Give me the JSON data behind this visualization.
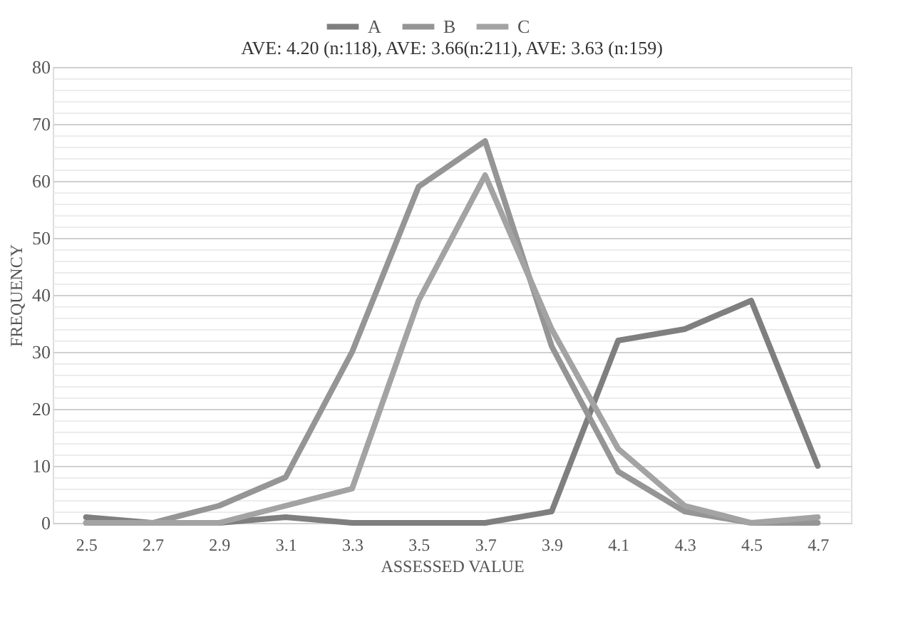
{
  "chart_data": {
    "type": "line",
    "subtitle": "AVE:  4.20 (n:118), AVE: 3.66(n:211), AVE: 3.63 (n:159)",
    "xlabel": "ASSESSED VALUE",
    "ylabel": "FREQUENCY",
    "categories": [
      "2.5",
      "2.7",
      "2.9",
      "3.1",
      "3.3",
      "3.5",
      "3.7",
      "3.9",
      "4.1",
      "4.3",
      "4.5",
      "4.7"
    ],
    "series": [
      {
        "name": "A",
        "color": "#7f7f7f",
        "values": [
          1,
          0,
          0,
          1,
          0,
          0,
          0,
          2,
          32,
          34,
          39,
          10
        ]
      },
      {
        "name": "B",
        "color": "#959595",
        "values": [
          0,
          0,
          3,
          8,
          30,
          59,
          67,
          31,
          9,
          2,
          0,
          0
        ]
      },
      {
        "name": "C",
        "color": "#a3a3a3",
        "values": [
          0,
          0,
          0,
          3,
          6,
          39,
          61,
          34,
          13,
          3,
          0,
          1
        ]
      }
    ],
    "ylim": [
      0,
      80
    ],
    "yticks": [
      0,
      {
        "value": 2,
        "label": null
      },
      {
        "value": 4,
        "label": null
      },
      {
        "value": 6,
        "label": null
      },
      {
        "value": 8,
        "label": null
      },
      10,
      {
        "value": 12,
        "label": null
      },
      {
        "value": 14,
        "label": null
      },
      {
        "value": 16,
        "label": null
      },
      {
        "value": 18,
        "label": null
      },
      20,
      {
        "value": 22,
        "label": null
      },
      {
        "value": 24,
        "label": null
      },
      {
        "value": 26,
        "label": null
      },
      {
        "value": 28,
        "label": null
      },
      30,
      {
        "value": 32,
        "label": null
      },
      {
        "value": 34,
        "label": null
      },
      {
        "value": 36,
        "label": null
      },
      {
        "value": 38,
        "label": null
      },
      40,
      {
        "value": 42,
        "label": null
      },
      {
        "value": 44,
        "label": null
      },
      {
        "value": 46,
        "label": null
      },
      {
        "value": 48,
        "label": null
      },
      50,
      {
        "value": 52,
        "label": null
      },
      {
        "value": 54,
        "label": null
      },
      {
        "value": 56,
        "label": null
      },
      {
        "value": 58,
        "label": null
      },
      60,
      {
        "value": 62,
        "label": null
      },
      {
        "value": 64,
        "label": null
      },
      {
        "value": 66,
        "label": null
      },
      {
        "value": 68,
        "label": null
      },
      70,
      {
        "value": 72,
        "label": null
      },
      {
        "value": 74,
        "label": null
      },
      {
        "value": 76,
        "label": null
      },
      {
        "value": 78,
        "label": null
      },
      80
    ],
    "grid": true,
    "legend": "top",
    "marker": "none",
    "line_style": "solid"
  }
}
